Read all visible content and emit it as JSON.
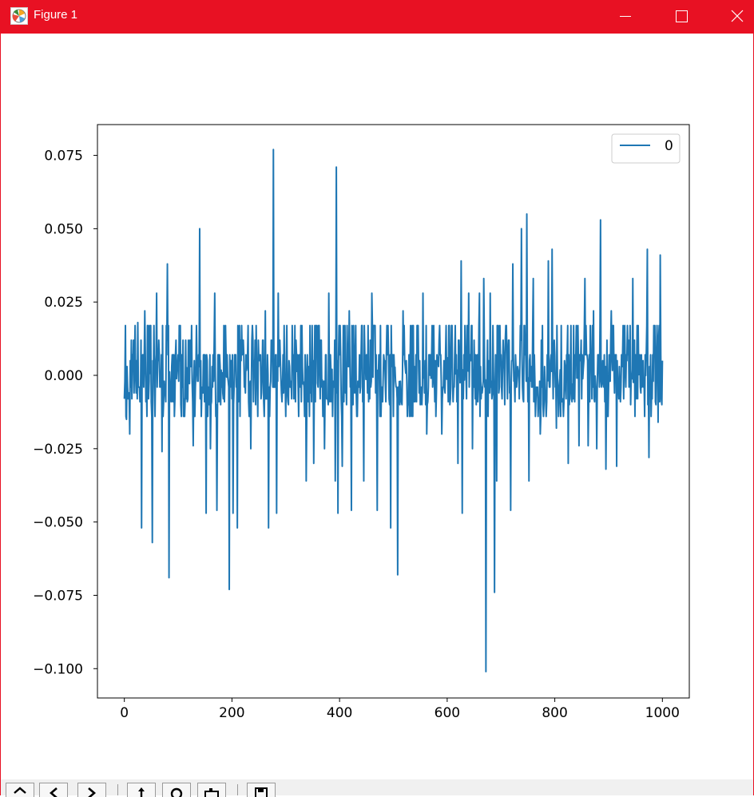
{
  "window": {
    "title": "Figure 1",
    "titlebar_color": "#e81123",
    "icon": "matplotlib-logo-icon",
    "controls": [
      "minimize-icon",
      "maximize-icon",
      "close-icon"
    ]
  },
  "toolbar": {
    "buttons": [
      "home-icon",
      "back-arrow-icon",
      "forward-arrow-icon",
      "pan-move-icon",
      "zoom-magnifier-icon",
      "configure-subplots-icon",
      "save-disk-icon"
    ]
  },
  "chart_data": {
    "type": "line",
    "title": "",
    "xlabel": "",
    "ylabel": "",
    "xlim": [
      -50,
      1050
    ],
    "ylim": [
      -0.11,
      0.0855
    ],
    "xticks": [
      0,
      200,
      400,
      600,
      800,
      1000
    ],
    "xtick_labels": [
      "0",
      "200",
      "400",
      "600",
      "800",
      "1000"
    ],
    "yticks": [
      0.075,
      0.05,
      0.025,
      0.0,
      -0.025,
      -0.05,
      -0.075,
      -0.1
    ],
    "ytick_labels": [
      "0.075",
      "0.050",
      "0.025",
      "0.000",
      "−0.025",
      "−0.050",
      "−0.075",
      "−0.100"
    ],
    "grid": false,
    "legend": {
      "placement": "top-right",
      "entries": [
        "0"
      ]
    },
    "series": [
      {
        "name": "0",
        "color": "#1f77b4",
        "x_start": 0,
        "x_end": 1000,
        "peaks": [
          {
            "x": 2,
            "y": 0.017
          },
          {
            "x": 4,
            "y": -0.015
          },
          {
            "x": 10,
            "y": -0.02
          },
          {
            "x": 25,
            "y": 0.018
          },
          {
            "x": 32,
            "y": -0.052
          },
          {
            "x": 38,
            "y": 0.022
          },
          {
            "x": 52,
            "y": -0.057
          },
          {
            "x": 60,
            "y": 0.028
          },
          {
            "x": 70,
            "y": -0.026
          },
          {
            "x": 80,
            "y": 0.038
          },
          {
            "x": 83,
            "y": -0.069
          },
          {
            "x": 95,
            "y": 0.007
          },
          {
            "x": 110,
            "y": -0.014
          },
          {
            "x": 125,
            "y": 0.017
          },
          {
            "x": 128,
            "y": -0.024
          },
          {
            "x": 140,
            "y": 0.05
          },
          {
            "x": 152,
            "y": -0.047
          },
          {
            "x": 160,
            "y": -0.025
          },
          {
            "x": 168,
            "y": 0.028
          },
          {
            "x": 172,
            "y": -0.046
          },
          {
            "x": 185,
            "y": 0.017
          },
          {
            "x": 195,
            "y": -0.073
          },
          {
            "x": 202,
            "y": -0.047
          },
          {
            "x": 210,
            "y": -0.052
          },
          {
            "x": 218,
            "y": 0.017
          },
          {
            "x": 235,
            "y": -0.025
          },
          {
            "x": 245,
            "y": 0.017
          },
          {
            "x": 262,
            "y": 0.022
          },
          {
            "x": 268,
            "y": -0.052
          },
          {
            "x": 277,
            "y": 0.077
          },
          {
            "x": 283,
            "y": -0.047
          },
          {
            "x": 286,
            "y": 0.028
          },
          {
            "x": 300,
            "y": -0.014
          },
          {
            "x": 312,
            "y": 0.017
          },
          {
            "x": 330,
            "y": 0.017
          },
          {
            "x": 338,
            "y": -0.036
          },
          {
            "x": 345,
            "y": 0.017
          },
          {
            "x": 352,
            "y": -0.03
          },
          {
            "x": 362,
            "y": 0.017
          },
          {
            "x": 372,
            "y": -0.025
          },
          {
            "x": 380,
            "y": 0.028
          },
          {
            "x": 392,
            "y": -0.036
          },
          {
            "x": 394,
            "y": 0.071
          },
          {
            "x": 397,
            "y": -0.047
          },
          {
            "x": 405,
            "y": -0.031
          },
          {
            "x": 418,
            "y": 0.022
          },
          {
            "x": 422,
            "y": -0.046
          },
          {
            "x": 430,
            "y": 0.017
          },
          {
            "x": 445,
            "y": -0.036
          },
          {
            "x": 460,
            "y": 0.028
          },
          {
            "x": 470,
            "y": -0.046
          },
          {
            "x": 488,
            "y": 0.017
          },
          {
            "x": 495,
            "y": -0.052
          },
          {
            "x": 508,
            "y": -0.068
          },
          {
            "x": 518,
            "y": 0.022
          },
          {
            "x": 530,
            "y": -0.014
          },
          {
            "x": 535,
            "y": 0.017
          },
          {
            "x": 545,
            "y": 0.017
          },
          {
            "x": 555,
            "y": 0.028
          },
          {
            "x": 562,
            "y": -0.02
          },
          {
            "x": 572,
            "y": 0.017
          },
          {
            "x": 590,
            "y": -0.02
          },
          {
            "x": 600,
            "y": 0.006
          },
          {
            "x": 620,
            "y": -0.03
          },
          {
            "x": 626,
            "y": 0.039
          },
          {
            "x": 628,
            "y": -0.047
          },
          {
            "x": 640,
            "y": 0.028
          },
          {
            "x": 647,
            "y": -0.025
          },
          {
            "x": 660,
            "y": 0.028
          },
          {
            "x": 668,
            "y": 0.033
          },
          {
            "x": 672,
            "y": -0.101
          },
          {
            "x": 680,
            "y": 0.028
          },
          {
            "x": 688,
            "y": -0.074
          },
          {
            "x": 692,
            "y": -0.036
          },
          {
            "x": 698,
            "y": 0.017
          },
          {
            "x": 710,
            "y": 0.017
          },
          {
            "x": 718,
            "y": -0.046
          },
          {
            "x": 722,
            "y": 0.038
          },
          {
            "x": 738,
            "y": 0.05
          },
          {
            "x": 748,
            "y": 0.055
          },
          {
            "x": 752,
            "y": -0.036
          },
          {
            "x": 760,
            "y": 0.033
          },
          {
            "x": 773,
            "y": -0.02
          },
          {
            "x": 788,
            "y": 0.039
          },
          {
            "x": 795,
            "y": 0.043
          },
          {
            "x": 803,
            "y": -0.018
          },
          {
            "x": 812,
            "y": 0.017
          },
          {
            "x": 825,
            "y": -0.03
          },
          {
            "x": 835,
            "y": 0.017
          },
          {
            "x": 845,
            "y": -0.024
          },
          {
            "x": 856,
            "y": 0.033
          },
          {
            "x": 862,
            "y": -0.024
          },
          {
            "x": 872,
            "y": 0.022
          },
          {
            "x": 878,
            "y": -0.025
          },
          {
            "x": 885,
            "y": 0.053
          },
          {
            "x": 895,
            "y": -0.032
          },
          {
            "x": 905,
            "y": 0.022
          },
          {
            "x": 915,
            "y": -0.031
          },
          {
            "x": 930,
            "y": 0.017
          },
          {
            "x": 945,
            "y": 0.033
          },
          {
            "x": 955,
            "y": 0.017
          },
          {
            "x": 972,
            "y": 0.043
          },
          {
            "x": 975,
            "y": -0.028
          },
          {
            "x": 985,
            "y": 0.01
          },
          {
            "x": 992,
            "y": -0.016
          },
          {
            "x": 996,
            "y": 0.041
          },
          {
            "x": 999,
            "y": -0.01
          }
        ]
      }
    ]
  }
}
